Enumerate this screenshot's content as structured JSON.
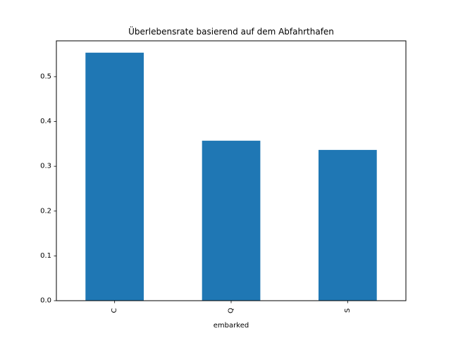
{
  "chart_data": {
    "type": "bar",
    "title": "Überlebensrate basierend auf dem Abfahrthafen",
    "xlabel": "embarked",
    "ylabel": "",
    "categories": [
      "C",
      "Q",
      "S"
    ],
    "values": [
      0.5536,
      0.3571,
      0.3366
    ],
    "ylim": [
      0,
      0.58
    ],
    "yticks": [
      "0.0",
      "0.1",
      "0.2",
      "0.3",
      "0.4",
      "0.5"
    ],
    "bar_color": "#1f77b4",
    "grid": false,
    "legend": "none"
  }
}
